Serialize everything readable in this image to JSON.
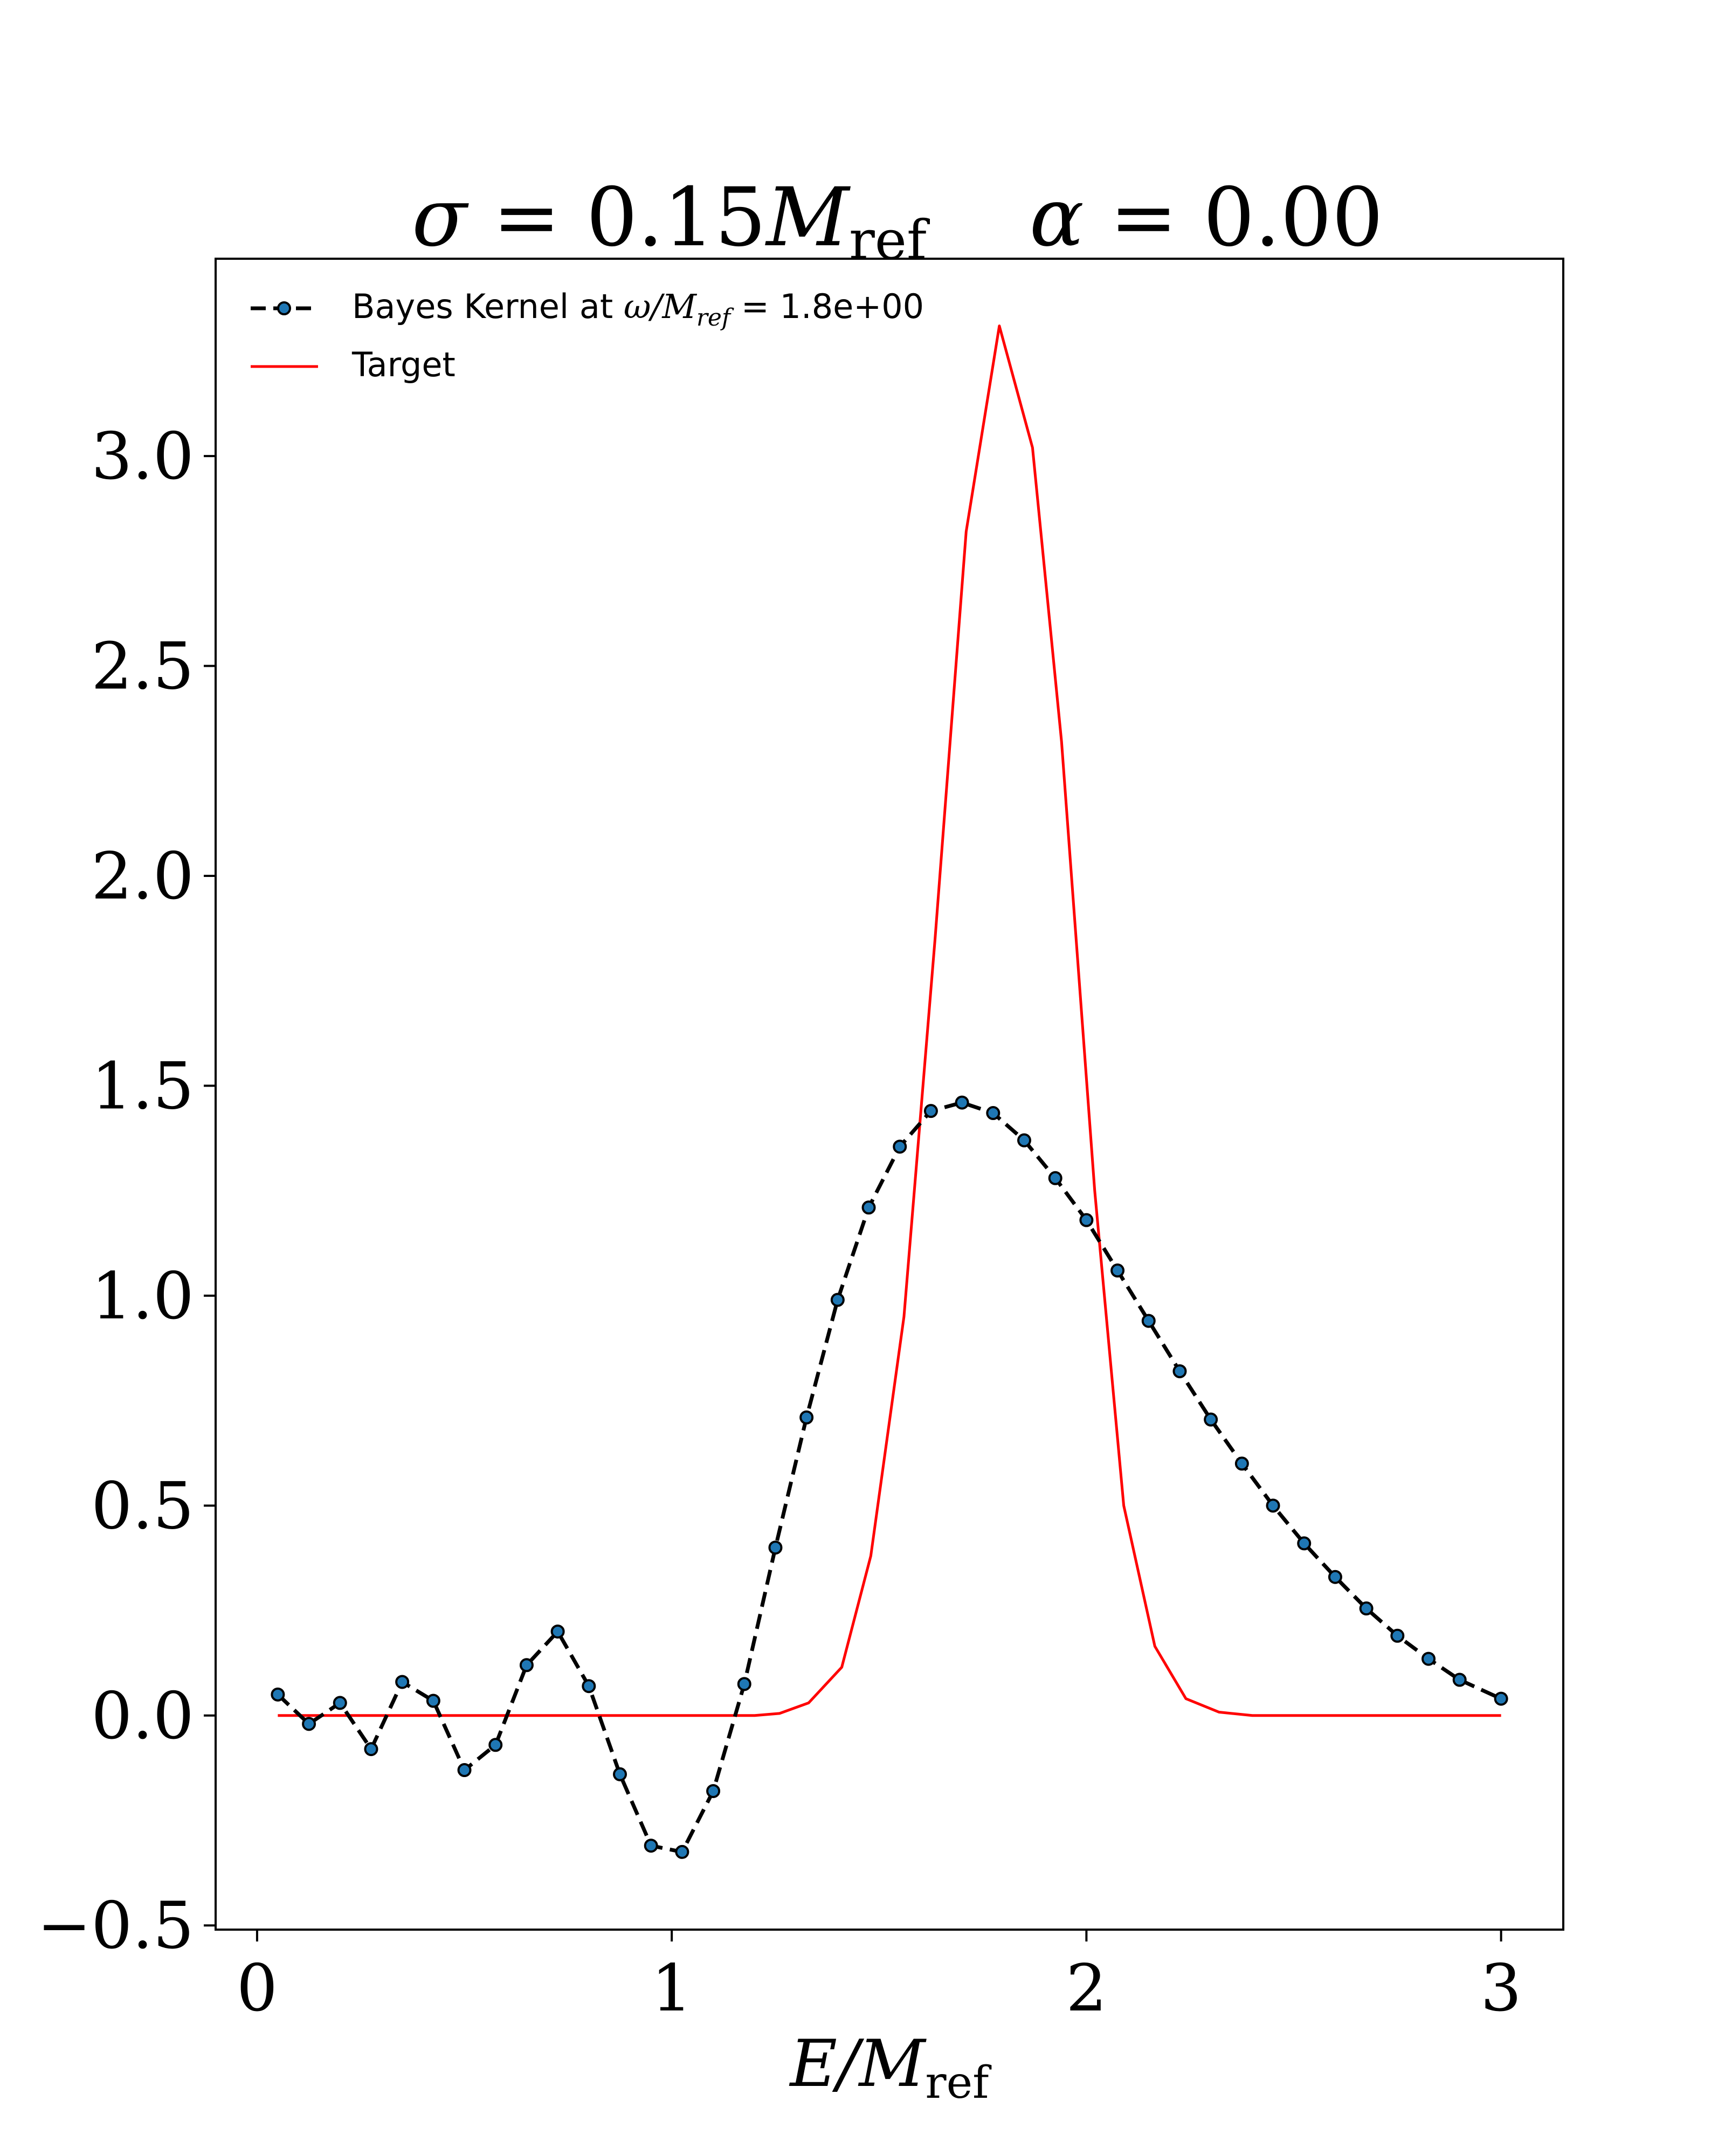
{
  "chart_data": {
    "type": "line",
    "title": {
      "sigma_symbol": "σ",
      "sigma_rest": " = 0.15",
      "alpha_symbol": "α",
      "alpha_rest": " = 0.00",
      "unit_main": "M",
      "unit_sub": "ref"
    },
    "xlabel": {
      "main": "E/M",
      "sub": "ref"
    },
    "ylabel": "",
    "xlim": [
      -0.1,
      3.15
    ],
    "ylim": [
      -0.51,
      3.47
    ],
    "x_ticks": [
      0,
      1,
      2,
      3
    ],
    "x_tick_labels": [
      "0",
      "1",
      "2",
      "3"
    ],
    "y_ticks": [
      -0.5,
      0.0,
      0.5,
      1.0,
      1.5,
      2.0,
      2.5,
      3.0
    ],
    "y_tick_labels": [
      "−0.5",
      "0.0",
      "0.5",
      "1.0",
      "1.5",
      "2.0",
      "2.5",
      "3.0"
    ],
    "grid": false,
    "legend_placement": "top-left",
    "legend": {
      "bayes_prefix": "Bayes Kernel at ",
      "bayes_math_omega": "ω/M",
      "bayes_math_sub": "ref",
      "bayes_suffix": " = 1.8e+00",
      "target": "Target"
    },
    "colors": {
      "bayes_line": "#000000",
      "bayes_marker": "#1f77b4",
      "target": "#ff0000"
    },
    "series": [
      {
        "name": "Bayes Kernel at ω/M_ref = 1.8e+00",
        "style": "dashed-with-markers",
        "x": [
          0.05,
          0.125,
          0.2,
          0.275,
          0.35,
          0.425,
          0.5,
          0.575,
          0.65,
          0.725,
          0.8,
          0.875,
          0.95,
          1.025,
          1.1,
          1.175,
          1.25,
          1.325,
          1.4,
          1.475,
          1.55,
          1.625,
          1.7,
          1.775,
          1.85,
          1.925,
          2.0,
          2.075,
          2.15,
          2.225,
          2.3,
          2.375,
          2.45,
          2.525,
          2.6,
          2.675,
          2.75,
          2.825,
          2.9,
          3.0
        ],
        "y": [
          0.05,
          -0.02,
          0.03,
          -0.08,
          0.08,
          0.035,
          -0.13,
          -0.07,
          0.12,
          0.2,
          0.07,
          -0.14,
          -0.31,
          -0.325,
          -0.18,
          0.075,
          0.4,
          0.71,
          0.99,
          1.21,
          1.355,
          1.44,
          1.46,
          1.435,
          1.37,
          1.28,
          1.18,
          1.06,
          0.94,
          0.82,
          0.705,
          0.6,
          0.5,
          0.41,
          0.33,
          0.255,
          0.19,
          0.135,
          0.085,
          0.04
        ]
      },
      {
        "name": "Target",
        "style": "solid",
        "x": [
          0.05,
          0.2,
          0.4,
          0.6,
          0.8,
          1.0,
          1.2,
          1.26,
          1.33,
          1.41,
          1.48,
          1.56,
          1.635,
          1.71,
          1.79,
          1.87,
          1.94,
          2.02,
          2.09,
          2.165,
          2.24,
          2.32,
          2.4,
          2.5,
          2.7,
          3.0
        ],
        "y": [
          0.0,
          0.0,
          0.0,
          0.0,
          0.0,
          0.0,
          0.0,
          0.005,
          0.03,
          0.115,
          0.38,
          0.95,
          1.85,
          2.82,
          3.31,
          3.02,
          2.32,
          1.25,
          0.5,
          0.165,
          0.04,
          0.008,
          0.0,
          0.0,
          0.0,
          0.0
        ]
      }
    ]
  }
}
